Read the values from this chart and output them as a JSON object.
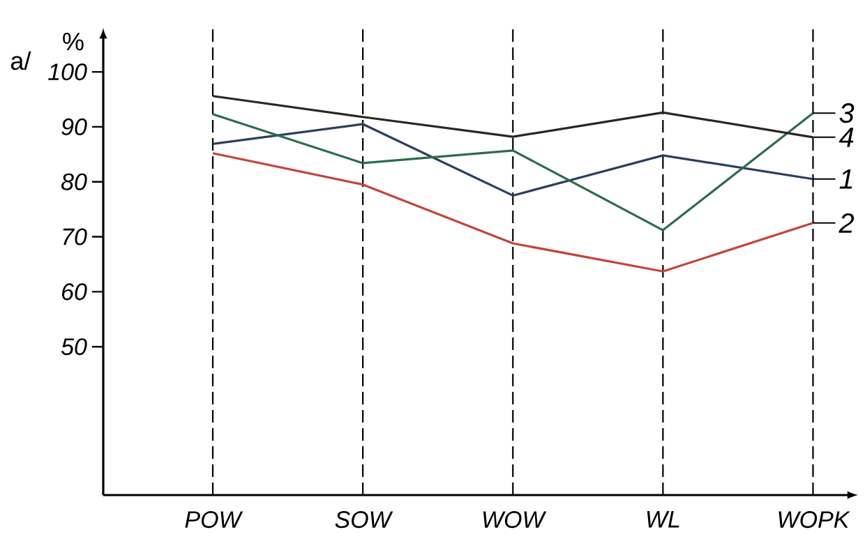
{
  "chart_data": {
    "type": "line",
    "ylabel": "%",
    "annotations": [
      "a/"
    ],
    "categories": [
      "POW",
      "SOW",
      "WOW",
      "WL",
      "WOPK"
    ],
    "series": [
      {
        "name": "1",
        "color": "#2b3f5e",
        "values": [
          86.9,
          90.5,
          77.5,
          84.8,
          80.5
        ]
      },
      {
        "name": "2",
        "color": "#c4443a",
        "values": [
          85.2,
          79.5,
          68.8,
          63.7,
          72.5
        ]
      },
      {
        "name": "3",
        "color": "#2e6b4f",
        "values": [
          92.3,
          83.4,
          85.7,
          71.2,
          92.5
        ]
      },
      {
        "name": "4",
        "color": "#2a2622",
        "values": [
          95.6,
          91.8,
          88.2,
          92.6,
          88.1
        ]
      }
    ],
    "ylim": [
      23,
      108
    ],
    "yticks": [
      50,
      60,
      70,
      80,
      90,
      100
    ],
    "grid": "x",
    "legend": false,
    "marker": "none",
    "line_style": "solid"
  }
}
